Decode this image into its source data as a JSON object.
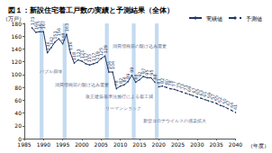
{
  "chart_data": {
    "type": "line",
    "title": "図１：新設住宅着工戸数の実績と予測結果（全体）",
    "x_label": "（年度）",
    "y_label": "（万戸）",
    "xlim": [
      1985,
      2040
    ],
    "xticks": [
      1985,
      1990,
      1995,
      2000,
      2005,
      2010,
      2015,
      2020,
      2025,
      2030,
      2035,
      2040
    ],
    "ylim": [
      0,
      180
    ],
    "yticks": [
      0,
      20,
      40,
      60,
      80,
      100,
      120,
      140,
      160,
      180
    ],
    "grid": false,
    "legend": "upper right",
    "data_labels": true,
    "series": [
      {
        "name": "実績値",
        "color": "#1f3864",
        "line_style": "solid",
        "marker": "circle",
        "x": [
          1987,
          1988,
          1989,
          1990,
          1991,
          1992,
          1993,
          1994,
          1995,
          1996,
          1997,
          1998,
          1999,
          2000,
          2001,
          2002,
          2003,
          2004,
          2005,
          2006,
          2007,
          2008,
          2009,
          2010,
          2011,
          2012,
          2013,
          2014,
          2015,
          2016,
          2017,
          2018,
          2019
        ],
        "values": [
          173,
          166,
          167,
          167,
          134,
          142,
          151,
          156,
          148,
          163,
          134,
          118,
          123,
          121,
          117,
          115,
          117,
          119,
          125,
          129,
          104,
          104,
          78,
          82,
          84,
          89,
          99,
          88,
          92,
          97,
          95,
          95,
          88
        ]
      },
      {
        "name": "予測値",
        "color": "#1f3864",
        "line_style": "dashed",
        "marker": "circle",
        "x": [
          2020,
          2021,
          2022,
          2023,
          2024,
          2025,
          2026,
          2027,
          2028,
          2029,
          2030,
          2031,
          2032,
          2033,
          2034,
          2035,
          2036,
          2037,
          2038,
          2039,
          2040
        ],
        "values": [
          81,
          82,
          80,
          78,
          77,
          75,
          73,
          71,
          69,
          67,
          65,
          63,
          61,
          59,
          57,
          55,
          52,
          50,
          47,
          44,
          41
        ]
      }
    ],
    "highlight_ranges": [
      [
        1989,
        1990
      ],
      [
        1995,
        1996
      ],
      [
        2006,
        2007
      ],
      [
        2013,
        2014
      ],
      [
        2019,
        2020
      ]
    ],
    "highlight_color": "#9dc3e6",
    "annotations": [
      {
        "text": "バブル崩壊",
        "x": 1989,
        "y": 106
      },
      {
        "text": "消費増税前の駆け込み需要",
        "x": 1993,
        "y": 84
      },
      {
        "text": "改正建築基準法施行による着工減",
        "x": 2001,
        "y": 66
      },
      {
        "text": "リーマンショック",
        "x": 2006,
        "y": 48
      },
      {
        "text": "消費増税前の駆け込み需要",
        "x": 2008,
        "y": 145
      },
      {
        "text": "新型コロナウイルスの感染拡大",
        "x": 2016,
        "y": 28
      }
    ]
  }
}
